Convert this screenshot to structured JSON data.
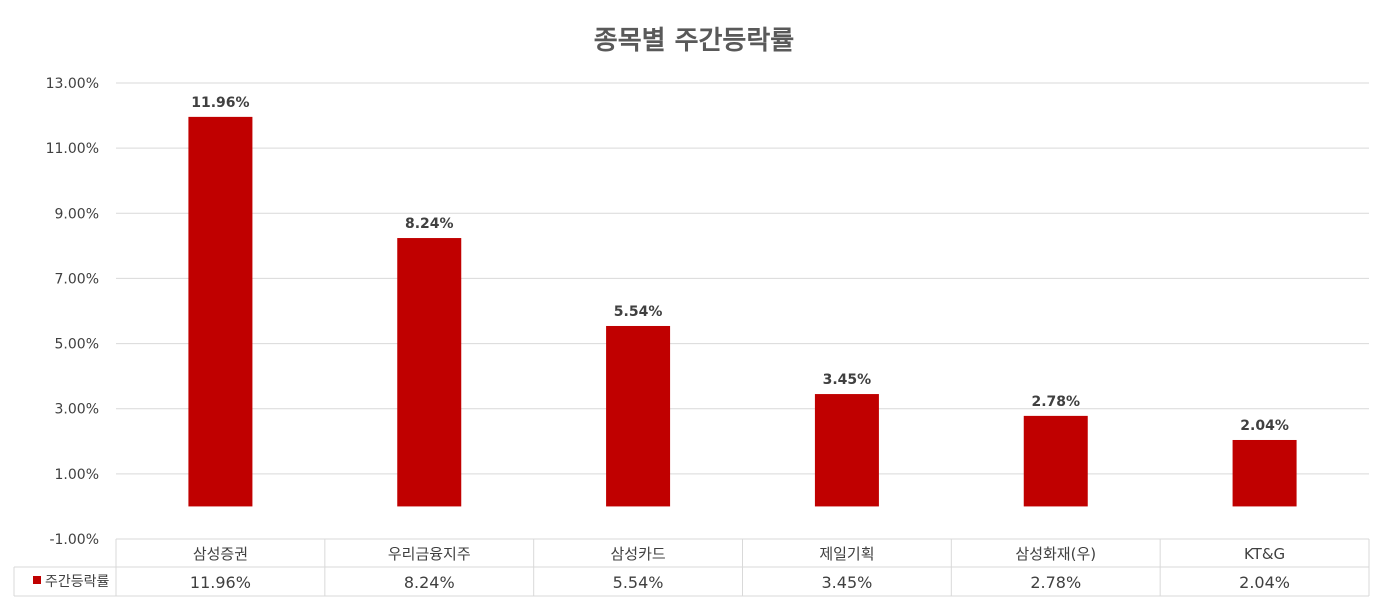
{
  "chart_data": {
    "type": "bar",
    "title": "종목별 주간등락률",
    "categories": [
      "삼성증권",
      "우리금융지주",
      "삼성카드",
      "제일기획",
      "삼성화재(우)",
      "KT&G"
    ],
    "series": [
      {
        "name": "주간등락률",
        "values": [
          11.96,
          8.24,
          5.54,
          3.45,
          2.78,
          2.04
        ],
        "data_labels": [
          "11.96%",
          "8.24%",
          "5.54%",
          "3.45%",
          "2.78%",
          "2.04%"
        ],
        "color": "#c00000"
      }
    ],
    "y_ticks": [
      "13.00%",
      "11.00%",
      "9.00%",
      "7.00%",
      "5.00%",
      "3.00%",
      "1.00%",
      "-1.00%"
    ],
    "ylim": [
      -1,
      13
    ],
    "grid": true,
    "legend": "data-table",
    "data_table": {
      "values": [
        "11.96%",
        "8.24%",
        "5.54%",
        "3.45%",
        "2.78%",
        "2.04%"
      ]
    }
  },
  "colors": {
    "bar": "#c00000",
    "grid": "#d9d9d9",
    "text": "#404040",
    "title": "#595959"
  }
}
